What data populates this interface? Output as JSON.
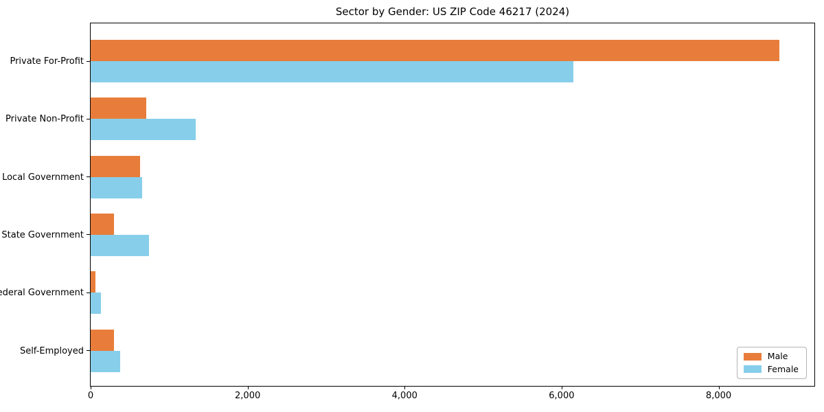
{
  "chart_data": {
    "type": "bar",
    "orientation": "horizontal",
    "title": "Sector by Gender: US ZIP Code 46217 (2024)",
    "categories": [
      "Private For-Profit",
      "Private Non-Profit",
      "Local Government",
      "State Government",
      "Federal Government",
      "Self-Employed"
    ],
    "series": [
      {
        "name": "Male",
        "color": "#e87d3b",
        "values": [
          8775,
          710,
          630,
          300,
          65,
          300
        ]
      },
      {
        "name": "Female",
        "color": "#87ceea",
        "values": [
          6150,
          1340,
          655,
          745,
          130,
          375
        ]
      }
    ],
    "xlabel": "",
    "ylabel": "",
    "xlim": [
      0,
      9220
    ],
    "xticks": {
      "values": [
        0,
        2000,
        4000,
        6000,
        8000
      ],
      "labels": [
        "0",
        "2,000",
        "4,000",
        "6,000",
        "8,000"
      ]
    },
    "grid": false,
    "legend": {
      "position": "lower right",
      "labels": [
        "Male",
        "Female"
      ]
    }
  }
}
